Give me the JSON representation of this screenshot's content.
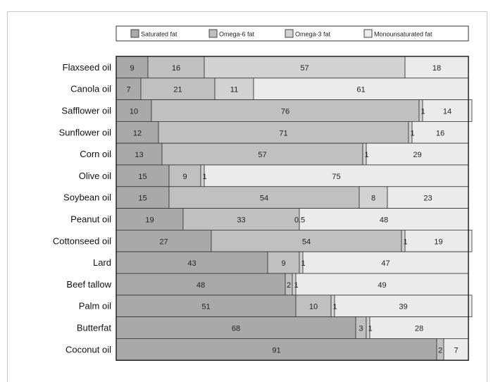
{
  "chart_data": {
    "type": "bar",
    "orientation": "horizontal",
    "stacked": true,
    "title": "",
    "xlabel": "",
    "ylabel": "",
    "xlim": [
      0,
      100
    ],
    "legend_position": "top",
    "grid": false,
    "categories": [
      "Flaxseed oil",
      "Canola oil",
      "Safflower oil",
      "Sunflower oil",
      "Corn oil",
      "Olive oil",
      "Soybean oil",
      "Peanut oil",
      "Cottonseed oil",
      "Lard",
      "Beef tallow",
      "Palm oil",
      "Butterfat",
      "Coconut oil"
    ],
    "series": [
      {
        "name": "Saturated fat",
        "color": "#a9a9a9",
        "values": [
          9,
          7,
          10,
          12,
          13,
          15,
          15,
          19,
          27,
          43,
          48,
          51,
          68,
          91
        ]
      },
      {
        "name": "Omega-6 fat",
        "color": "#c0c0c0",
        "values": [
          16,
          21,
          76,
          71,
          57,
          9,
          54,
          33,
          54,
          9,
          2,
          10,
          3,
          2
        ]
      },
      {
        "name": "Omega-3 fat",
        "color": "#d2d2d2",
        "values": [
          57,
          11,
          1,
          1,
          1,
          1,
          8,
          0,
          1,
          1,
          1,
          1,
          1,
          0
        ]
      },
      {
        "name": "Monounsaturated fat",
        "color": "#ebebeb",
        "values": [
          18,
          61,
          14,
          16,
          29,
          75,
          23,
          48,
          19,
          47,
          49,
          39,
          28,
          7
        ]
      }
    ],
    "data_labels": [
      [
        "9",
        "16",
        "57",
        "18"
      ],
      [
        "7",
        "21",
        "11",
        "61"
      ],
      [
        "10",
        "76",
        "1",
        "14"
      ],
      [
        "12",
        "71",
        "1",
        "16"
      ],
      [
        "13",
        "57",
        "1",
        "29"
      ],
      [
        "15",
        "9",
        "1",
        "75"
      ],
      [
        "15",
        "54",
        "8",
        "23"
      ],
      [
        "19",
        "33",
        "0.5",
        "48"
      ],
      [
        "27",
        "54",
        "1",
        "19"
      ],
      [
        "43",
        "9",
        "1",
        "47"
      ],
      [
        "48",
        "2",
        "1",
        "49"
      ],
      [
        "51",
        "10",
        "1",
        "39"
      ],
      [
        "68",
        "3",
        "1",
        "28"
      ],
      [
        "91",
        "2",
        "",
        "7"
      ]
    ]
  }
}
